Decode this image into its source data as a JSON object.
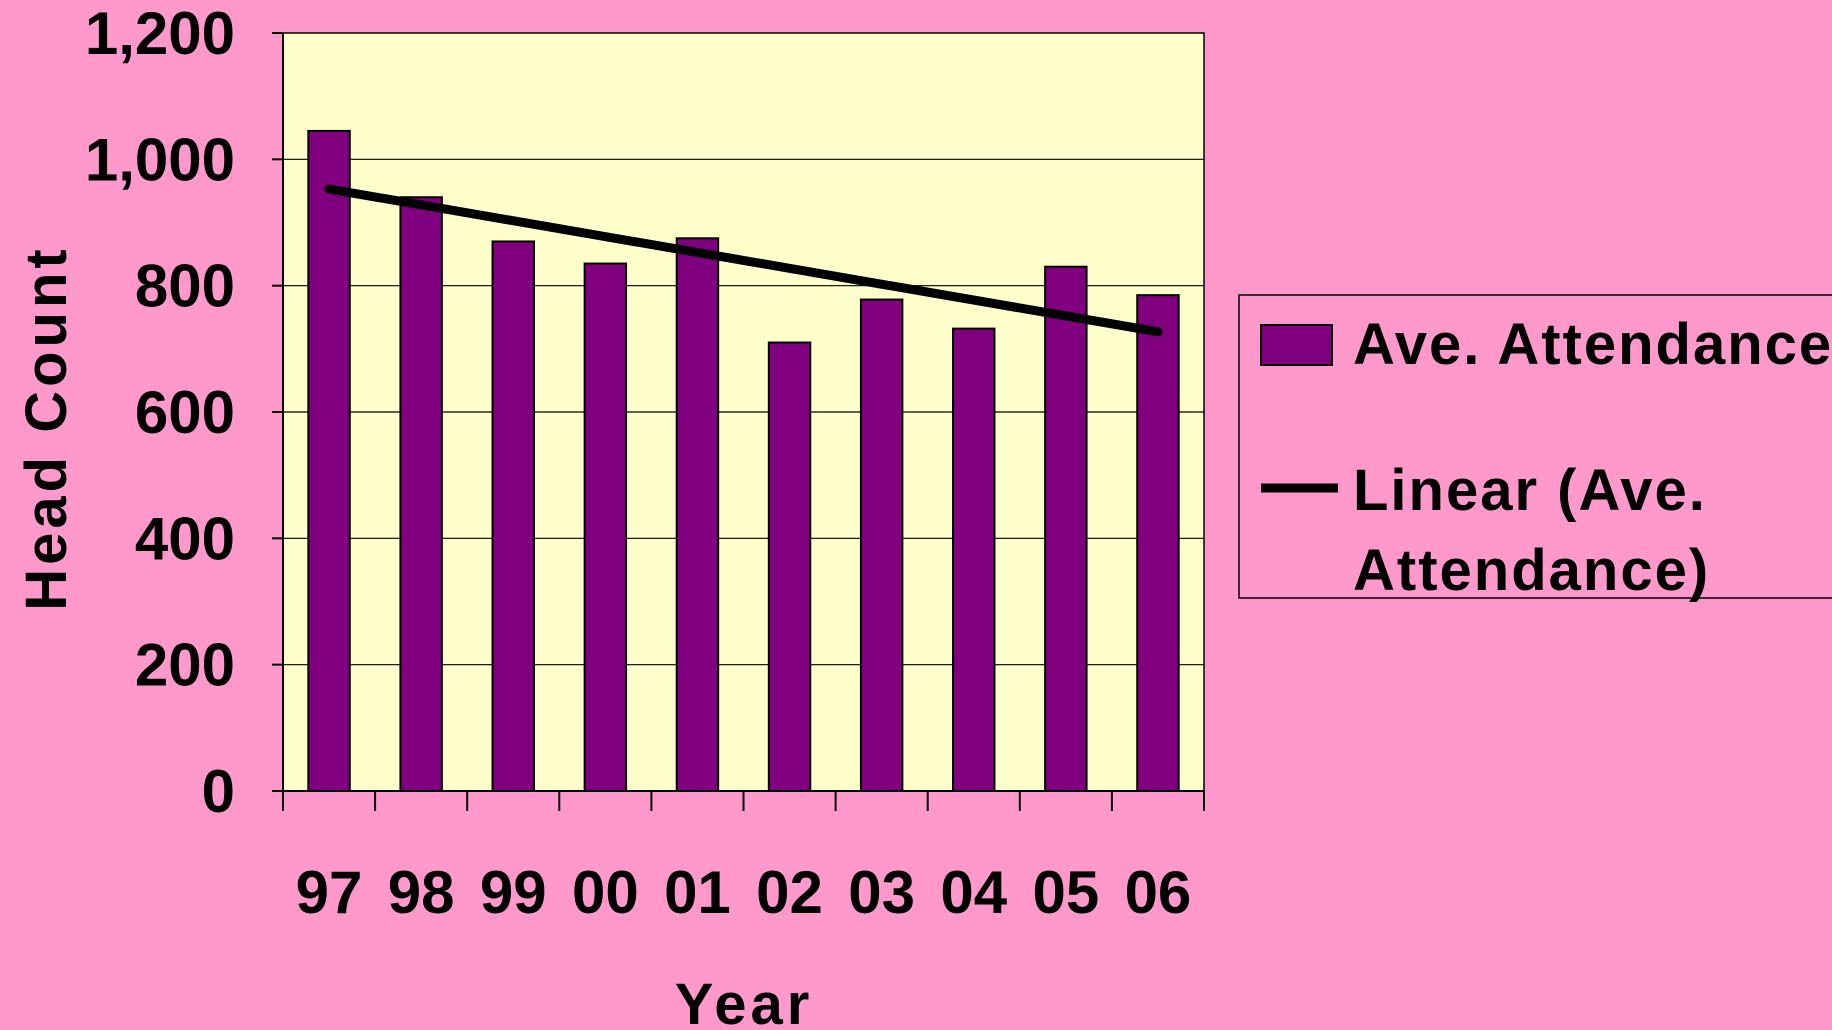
{
  "chart_data": {
    "type": "bar",
    "categories": [
      "97",
      "98",
      "99",
      "00",
      "01",
      "02",
      "03",
      "04",
      "05",
      "06"
    ],
    "series": [
      {
        "name": "Ave. Attendance",
        "values": [
          1045,
          940,
          870,
          835,
          875,
          710,
          778,
          732,
          830,
          785
        ]
      }
    ],
    "trendline": {
      "name": "Linear (Ave. Attendance)",
      "start": 953,
      "end": 727
    },
    "xlabel": "Year",
    "ylabel": "Head Count",
    "ylim": [
      0,
      1200
    ],
    "yticks": [
      "0",
      "200",
      "400",
      "600",
      "800",
      "1,000",
      "1,200"
    ],
    "ytick_values": [
      0,
      200,
      400,
      600,
      800,
      1000,
      1200
    ],
    "grid": true,
    "legend_position": "right",
    "legend": {
      "bar_label": "Ave. Attendance",
      "line_label_1": "Linear (Ave.",
      "line_label_2": "Attendance)"
    },
    "colors": {
      "background": "#ff99cc",
      "plot_area": "#ffffcc",
      "bar": "#800080",
      "trendline": "#000000"
    }
  }
}
